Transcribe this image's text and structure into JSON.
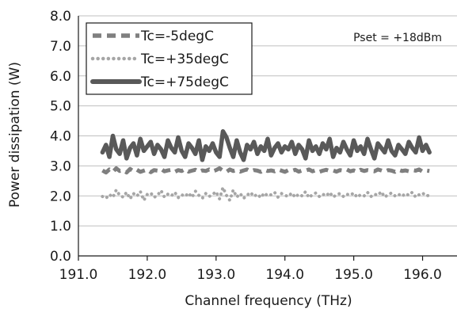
{
  "chart_data": {
    "type": "line",
    "title": "",
    "xlabel": "Channel frequency (THz)",
    "ylabel": "Power dissipation (W)",
    "xlim": [
      191.0,
      196.5
    ],
    "ylim": [
      0.0,
      8.0
    ],
    "x_ticks": [
      "191.0",
      "192.0",
      "193.0",
      "194.0",
      "195.0",
      "196.0"
    ],
    "y_ticks": [
      "0.0",
      "1.0",
      "2.0",
      "3.0",
      "4.0",
      "5.0",
      "6.0",
      "7.0",
      "8.0"
    ],
    "grid": "horizontal",
    "legend_position": "top-left",
    "annotation": "Pset = +18dBm",
    "series": [
      {
        "name": "Tc=-5degC",
        "style": "dashed",
        "color": "#7f7f7f",
        "x": [
          191.35,
          191.4,
          191.45,
          191.5,
          191.55,
          191.6,
          191.65,
          191.7,
          191.75,
          191.8,
          191.85,
          191.9,
          191.95,
          192.0,
          192.05,
          192.1,
          192.15,
          192.2,
          192.25,
          192.3,
          192.35,
          192.4,
          192.45,
          192.5,
          192.55,
          192.6,
          192.65,
          192.7,
          192.75,
          192.8,
          192.85,
          192.9,
          192.95,
          193.0,
          193.05,
          193.1,
          193.15,
          193.2,
          193.25,
          193.3,
          193.35,
          193.4,
          193.45,
          193.5,
          193.55,
          193.6,
          193.65,
          193.7,
          193.75,
          193.8,
          193.85,
          193.9,
          193.95,
          194.0,
          194.05,
          194.1,
          194.15,
          194.2,
          194.25,
          194.3,
          194.35,
          194.4,
          194.45,
          194.5,
          194.55,
          194.6,
          194.65,
          194.7,
          194.75,
          194.8,
          194.85,
          194.9,
          194.95,
          195.0,
          195.05,
          195.1,
          195.15,
          195.2,
          195.25,
          195.3,
          195.35,
          195.4,
          195.45,
          195.5,
          195.55,
          195.6,
          195.65,
          195.7,
          195.75,
          195.8,
          195.85,
          195.9,
          195.95,
          196.0,
          196.05,
          196.1
        ],
        "y": [
          2.85,
          2.78,
          2.88,
          2.8,
          2.92,
          2.83,
          2.86,
          2.78,
          2.9,
          2.82,
          2.87,
          2.8,
          2.84,
          2.88,
          2.79,
          2.86,
          2.84,
          2.9,
          2.82,
          2.85,
          2.87,
          2.8,
          2.86,
          2.83,
          2.89,
          2.81,
          2.84,
          2.87,
          2.8,
          2.85,
          2.83,
          2.88,
          2.82,
          2.86,
          2.92,
          2.84,
          2.8,
          2.88,
          2.83,
          2.86,
          2.81,
          2.85,
          2.88,
          2.82,
          2.86,
          2.84,
          2.8,
          2.87,
          2.83,
          2.85,
          2.82,
          2.88,
          2.84,
          2.8,
          2.86,
          2.83,
          2.87,
          2.81,
          2.85,
          2.84,
          2.88,
          2.82,
          2.86,
          2.8,
          2.84,
          2.87,
          2.83,
          2.85,
          2.81,
          2.86,
          2.84,
          2.88,
          2.82,
          2.85,
          2.8,
          2.87,
          2.83,
          2.86,
          2.84,
          2.82,
          2.88,
          2.85,
          2.81,
          2.86,
          2.84,
          2.8,
          2.87,
          2.83,
          2.85,
          2.82,
          2.86,
          2.84,
          2.88,
          2.81,
          2.85,
          2.83
        ]
      },
      {
        "name": "Tc=+35degC",
        "style": "dotted",
        "color": "#a6a6a6",
        "x": [
          191.35,
          191.4,
          191.45,
          191.5,
          191.55,
          191.6,
          191.65,
          191.7,
          191.75,
          191.8,
          191.85,
          191.9,
          191.95,
          192.0,
          192.05,
          192.1,
          192.15,
          192.2,
          192.25,
          192.3,
          192.35,
          192.4,
          192.45,
          192.5,
          192.55,
          192.6,
          192.65,
          192.7,
          192.75,
          192.8,
          192.85,
          192.9,
          192.95,
          193.0,
          193.05,
          193.1,
          193.15,
          193.2,
          193.25,
          193.3,
          193.35,
          193.4,
          193.45,
          193.5,
          193.55,
          193.6,
          193.65,
          193.7,
          193.75,
          193.8,
          193.85,
          193.9,
          193.95,
          194.0,
          194.05,
          194.1,
          194.15,
          194.2,
          194.25,
          194.3,
          194.35,
          194.4,
          194.45,
          194.5,
          194.55,
          194.6,
          194.65,
          194.7,
          194.75,
          194.8,
          194.85,
          194.9,
          194.95,
          195.0,
          195.05,
          195.1,
          195.15,
          195.2,
          195.25,
          195.3,
          195.35,
          195.4,
          195.45,
          195.5,
          195.55,
          195.6,
          195.65,
          195.7,
          195.75,
          195.8,
          195.85,
          195.9,
          195.95,
          196.0,
          196.05,
          196.1
        ],
        "y": [
          1.98,
          1.92,
          2.05,
          1.95,
          2.2,
          2.02,
          1.96,
          2.12,
          1.9,
          2.08,
          1.99,
          2.15,
          1.85,
          2.05,
          2.1,
          1.95,
          2.02,
          2.18,
          1.96,
          2.06,
          2.0,
          2.12,
          1.94,
          2.04,
          1.98,
          2.1,
          1.95,
          2.16,
          2.02,
          1.92,
          2.08,
          1.98,
          2.05,
          2.14,
          1.9,
          2.28,
          2.02,
          1.85,
          2.2,
          1.96,
          2.08,
          1.92,
          2.02,
          2.12,
          1.98,
          2.06,
          1.94,
          2.1,
          2.0,
          2.04,
          2.12,
          1.96,
          2.08,
          2.02,
          1.98,
          2.1,
          1.95,
          2.06,
          2.0,
          2.14,
          1.94,
          2.04,
          2.1,
          1.98,
          2.06,
          2.0,
          2.12,
          1.96,
          2.04,
          2.08,
          1.98,
          2.06,
          2.02,
          2.1,
          1.95,
          2.04,
          2.0,
          2.12,
          1.98,
          2.06,
          2.02,
          2.14,
          1.96,
          2.04,
          2.1,
          2.0,
          2.06,
          1.98,
          2.08,
          2.02,
          2.12,
          1.96,
          2.04,
          2.1,
          2.0,
          2.02
        ]
      },
      {
        "name": "Tc=+75degC",
        "style": "solid",
        "color": "#595959",
        "x": [
          191.35,
          191.4,
          191.45,
          191.5,
          191.55,
          191.6,
          191.65,
          191.7,
          191.75,
          191.8,
          191.85,
          191.9,
          191.95,
          192.0,
          192.05,
          192.1,
          192.15,
          192.2,
          192.25,
          192.3,
          192.35,
          192.4,
          192.45,
          192.5,
          192.55,
          192.6,
          192.65,
          192.7,
          192.75,
          192.8,
          192.85,
          192.9,
          192.95,
          193.0,
          193.05,
          193.1,
          193.15,
          193.2,
          193.25,
          193.3,
          193.35,
          193.4,
          193.45,
          193.5,
          193.55,
          193.6,
          193.65,
          193.7,
          193.75,
          193.8,
          193.85,
          193.9,
          193.95,
          194.0,
          194.05,
          194.1,
          194.15,
          194.2,
          194.25,
          194.3,
          194.35,
          194.4,
          194.45,
          194.5,
          194.55,
          194.6,
          194.65,
          194.7,
          194.75,
          194.8,
          194.85,
          194.9,
          194.95,
          195.0,
          195.05,
          195.1,
          195.15,
          195.2,
          195.25,
          195.3,
          195.35,
          195.4,
          195.45,
          195.5,
          195.55,
          195.6,
          195.65,
          195.7,
          195.75,
          195.8,
          195.85,
          195.9,
          195.95,
          196.0,
          196.05,
          196.1
        ],
        "y": [
          3.45,
          3.7,
          3.3,
          4.0,
          3.55,
          3.4,
          3.85,
          3.25,
          3.6,
          3.75,
          3.35,
          3.9,
          3.5,
          3.65,
          3.8,
          3.4,
          3.7,
          3.55,
          3.3,
          3.85,
          3.6,
          3.45,
          3.95,
          3.5,
          3.3,
          3.75,
          3.6,
          3.4,
          3.85,
          3.2,
          3.65,
          3.5,
          3.75,
          3.45,
          3.3,
          4.15,
          3.95,
          3.6,
          3.3,
          3.85,
          3.45,
          3.2,
          3.7,
          3.55,
          3.8,
          3.4,
          3.65,
          3.5,
          3.9,
          3.35,
          3.6,
          3.75,
          3.45,
          3.65,
          3.55,
          3.8,
          3.4,
          3.7,
          3.55,
          3.25,
          3.85,
          3.5,
          3.65,
          3.4,
          3.75,
          3.55,
          3.9,
          3.3,
          3.6,
          3.45,
          3.8,
          3.55,
          3.35,
          3.85,
          3.5,
          3.65,
          3.4,
          3.9,
          3.55,
          3.25,
          3.75,
          3.6,
          3.45,
          3.85,
          3.5,
          3.35,
          3.7,
          3.55,
          3.4,
          3.8,
          3.6,
          3.45,
          3.95,
          3.5,
          3.7,
          3.45
        ]
      }
    ]
  }
}
